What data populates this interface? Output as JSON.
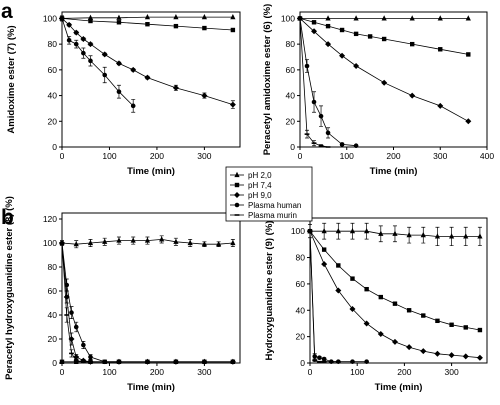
{
  "panel_letters": [
    "a",
    "b"
  ],
  "legend": {
    "entries": [
      "pH 2,0",
      "pH 7,4",
      "pH 9,0",
      "Plasma human",
      "Plasma murin"
    ],
    "markers": [
      "triangle",
      "square",
      "diamond",
      "circle",
      "tick"
    ]
  },
  "chart_data": [
    {
      "type": "line",
      "panel": "a-left",
      "xlabel": "Time (min)",
      "ylabel": "Amidoxime ester (7) (%)",
      "xlim": [
        0,
        375
      ],
      "ylim": [
        0,
        105
      ],
      "xticks": [
        0,
        100,
        200,
        300
      ],
      "yticks": [
        0,
        20,
        40,
        60,
        80,
        100
      ],
      "series": [
        {
          "name": "pH 2,0",
          "marker": "triangle",
          "x": [
            0,
            60,
            120,
            180,
            240,
            300,
            360
          ],
          "y": [
            100,
            100.5,
            100.5,
            101,
            101,
            101,
            101
          ]
        },
        {
          "name": "pH 7,4",
          "marker": "square",
          "x": [
            0,
            60,
            120,
            180,
            240,
            300,
            360
          ],
          "y": [
            100,
            98,
            97,
            95.5,
            94,
            92.5,
            91
          ]
        },
        {
          "name": "pH 9,0",
          "marker": "diamond",
          "x": [
            0,
            15,
            30,
            45,
            60,
            90,
            120,
            150,
            180,
            240,
            300,
            360
          ],
          "y": [
            100,
            95,
            89,
            84,
            80,
            72,
            65,
            60,
            54,
            46,
            40,
            33
          ],
          "err": [
            0,
            1,
            1,
            1,
            1,
            1,
            1,
            1,
            1,
            2,
            2,
            3
          ]
        },
        {
          "name": "Plasma human",
          "marker": "circle",
          "x": [
            0,
            15,
            30,
            45,
            60,
            90,
            120,
            150
          ],
          "y": [
            100,
            83,
            80,
            73,
            67,
            56,
            43,
            32
          ],
          "err": [
            2,
            3,
            3,
            4,
            4,
            6,
            5,
            5
          ]
        }
      ]
    },
    {
      "type": "line",
      "panel": "a-right",
      "xlabel": "Time (min)",
      "ylabel": "Peracetyl amidoxime ester (6) (%)",
      "xlim": [
        0,
        400
      ],
      "ylim": [
        0,
        105
      ],
      "xticks": [
        0,
        100,
        200,
        300,
        400
      ],
      "yticks": [
        0,
        20,
        40,
        60,
        80,
        100
      ],
      "series": [
        {
          "name": "pH 2,0",
          "marker": "triangle",
          "x": [
            0,
            60,
            120,
            180,
            240,
            300,
            360
          ],
          "y": [
            100,
            100,
            100,
            100,
            100,
            100,
            100
          ]
        },
        {
          "name": "pH 7,4",
          "marker": "square",
          "x": [
            0,
            30,
            60,
            90,
            120,
            150,
            180,
            240,
            300,
            360
          ],
          "y": [
            100,
            97,
            94,
            91,
            88,
            86,
            84,
            80,
            76,
            72
          ]
        },
        {
          "name": "pH 9,0",
          "marker": "diamond",
          "x": [
            0,
            30,
            60,
            90,
            120,
            180,
            240,
            300,
            360
          ],
          "y": [
            100,
            90,
            80,
            71,
            63,
            50,
            40,
            32,
            20
          ]
        },
        {
          "name": "Plasma human",
          "marker": "circle",
          "x": [
            0,
            15,
            30,
            45,
            60,
            90,
            120
          ],
          "y": [
            100,
            63,
            35,
            24,
            11,
            2,
            1
          ],
          "err": [
            0,
            5,
            8,
            8,
            4,
            1,
            0
          ]
        },
        {
          "name": "Plasma murin",
          "marker": "tick",
          "x": [
            0,
            15,
            30,
            45,
            60
          ],
          "y": [
            100,
            10,
            3,
            1,
            0
          ],
          "err": [
            0,
            3,
            2,
            1,
            0
          ]
        }
      ]
    },
    {
      "type": "line",
      "panel": "b-left",
      "xlabel": "Time (min)",
      "ylabel": "Peracetyl hydroxyguanidine ester (8) (%)",
      "xlim": [
        0,
        375
      ],
      "ylim": [
        0,
        125
      ],
      "xticks": [
        0,
        100,
        200,
        300
      ],
      "yticks": [
        0,
        20,
        40,
        60,
        80,
        100,
        120
      ],
      "series": [
        {
          "name": "pH 2,0",
          "marker": "triangle",
          "x": [
            0,
            30,
            60,
            90,
            120,
            150,
            180,
            210,
            240,
            270,
            300,
            330,
            360
          ],
          "y": [
            100,
            99,
            100,
            101,
            102,
            102,
            102,
            103,
            101,
            100,
            99,
            99,
            100
          ],
          "err": [
            2,
            3,
            3,
            3,
            3,
            3,
            3,
            3,
            3,
            3,
            2,
            2,
            3
          ]
        },
        {
          "name": "pH 7,4",
          "marker": "square",
          "x": [
            0,
            30,
            60,
            90,
            120,
            180,
            240,
            300,
            360
          ],
          "y": [
            1,
            1,
            1,
            1,
            1,
            1,
            1,
            1,
            1
          ]
        },
        {
          "name": "pH 9,0",
          "marker": "diamond",
          "x": [
            0,
            10,
            20,
            30,
            45,
            60,
            120,
            180,
            240,
            300,
            360
          ],
          "y": [
            100,
            55,
            20,
            5,
            2,
            1,
            1,
            1,
            1,
            1,
            1
          ],
          "err": [
            0,
            5,
            5,
            2,
            1,
            0,
            0,
            0,
            0,
            0,
            0
          ]
        },
        {
          "name": "Plasma human",
          "marker": "circle",
          "x": [
            0,
            10,
            20,
            30,
            45,
            60,
            90,
            120
          ],
          "y": [
            100,
            65,
            42,
            30,
            15,
            5,
            1,
            1
          ],
          "err": [
            0,
            5,
            5,
            4,
            3,
            2,
            0,
            0
          ]
        },
        {
          "name": "Plasma murin",
          "marker": "tick",
          "x": [
            0,
            10,
            20,
            30,
            45,
            60
          ],
          "y": [
            100,
            40,
            8,
            2,
            1,
            1
          ],
          "err": [
            0,
            6,
            3,
            1,
            0,
            0
          ]
        }
      ]
    },
    {
      "type": "line",
      "panel": "b-right",
      "xlabel": "Time (min)",
      "ylabel": "Hydroxyguanidine ester (9) (%)",
      "xlim": [
        0,
        375
      ],
      "ylim": [
        0,
        110
      ],
      "xticks": [
        0,
        100,
        200,
        300
      ],
      "yticks": [
        0,
        20,
        40,
        60,
        80,
        100
      ],
      "series": [
        {
          "name": "pH 2,0",
          "marker": "triangle",
          "x": [
            0,
            30,
            60,
            90,
            120,
            150,
            180,
            210,
            240,
            270,
            300,
            330,
            360
          ],
          "y": [
            100,
            100,
            100,
            100,
            100,
            98,
            98,
            97,
            97,
            96,
            96,
            96,
            96
          ],
          "err": [
            5,
            6,
            6,
            6,
            6,
            6,
            6,
            6,
            6,
            7,
            7,
            7,
            7
          ]
        },
        {
          "name": "pH 7,4",
          "marker": "square",
          "x": [
            0,
            30,
            60,
            90,
            120,
            150,
            180,
            210,
            240,
            270,
            300,
            330,
            360
          ],
          "y": [
            100,
            86,
            74,
            64,
            56,
            50,
            45,
            40,
            36,
            32,
            29,
            27,
            25
          ]
        },
        {
          "name": "pH 9,0",
          "marker": "diamond",
          "x": [
            0,
            30,
            60,
            90,
            120,
            150,
            180,
            210,
            240,
            270,
            300,
            330,
            360
          ],
          "y": [
            100,
            75,
            55,
            41,
            30,
            22,
            16,
            12,
            9,
            7,
            6,
            5,
            4
          ]
        },
        {
          "name": "Plasma human",
          "marker": "circle",
          "x": [
            0,
            10,
            20,
            30,
            45,
            60,
            90,
            120
          ],
          "y": [
            100,
            5,
            4,
            3,
            1,
            1,
            1,
            1
          ],
          "err": [
            0,
            2,
            1,
            1,
            0,
            0,
            0,
            0
          ]
        },
        {
          "name": "Plasma murin",
          "marker": "tick",
          "x": [
            0,
            10,
            20,
            30,
            45,
            60
          ],
          "y": [
            100,
            2,
            1,
            1,
            1,
            1
          ],
          "err": [
            0,
            1,
            0,
            0,
            0,
            0
          ]
        }
      ]
    }
  ]
}
